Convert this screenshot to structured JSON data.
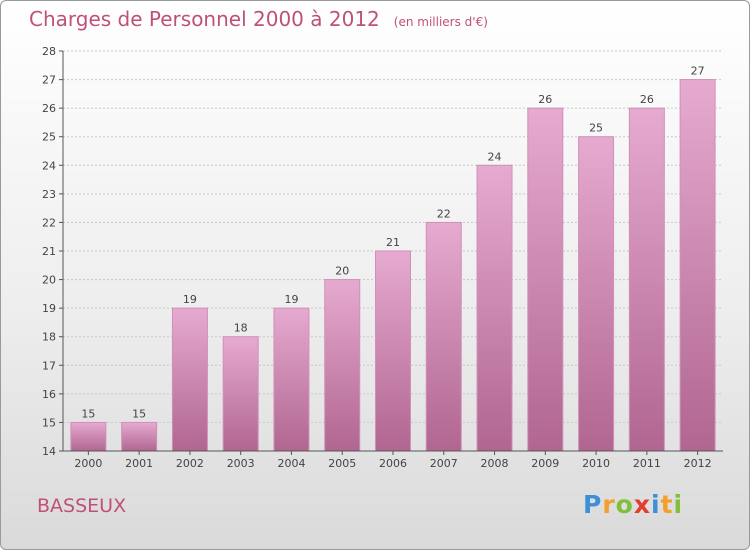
{
  "header": {
    "title": "Charges de Personnel 2000 à 2012",
    "subtitle": "(en milliers d'€)"
  },
  "footer": {
    "commune": "BASSEUX",
    "logo_text": "Proxiti",
    "logo_letters": [
      {
        "ch": "P",
        "color": "#3d8fd6"
      },
      {
        "ch": "r",
        "color": "#f2a02c"
      },
      {
        "ch": "o",
        "color": "#7fbf3a"
      },
      {
        "ch": "x",
        "color": "#e33d2e"
      },
      {
        "ch": "i",
        "color": "#3d8fd6"
      },
      {
        "ch": "t",
        "color": "#f2a02c"
      },
      {
        "ch": "i",
        "color": "#7fbf3a"
      }
    ]
  },
  "colors": {
    "title": "#c0507a",
    "bar_top": "#e6aad0",
    "bar_bottom": "#b06690",
    "bar_border": "#d090b8",
    "axis": "#555555",
    "grid": "#c8c8c8"
  },
  "chart_data": {
    "type": "bar",
    "title": "Charges de Personnel 2000 à 2012",
    "subtitle": "(en milliers d'€)",
    "categories": [
      "2000",
      "2001",
      "2002",
      "2003",
      "2004",
      "2005",
      "2006",
      "2007",
      "2008",
      "2009",
      "2010",
      "2011",
      "2012"
    ],
    "values": [
      15,
      15,
      19,
      18,
      19,
      20,
      21,
      22,
      24,
      26,
      25,
      26,
      27
    ],
    "ylim": [
      14,
      28
    ],
    "yticks": [
      14,
      15,
      16,
      17,
      18,
      19,
      20,
      21,
      22,
      23,
      24,
      25,
      26,
      27,
      28
    ],
    "grid": true,
    "data_labels": true
  }
}
